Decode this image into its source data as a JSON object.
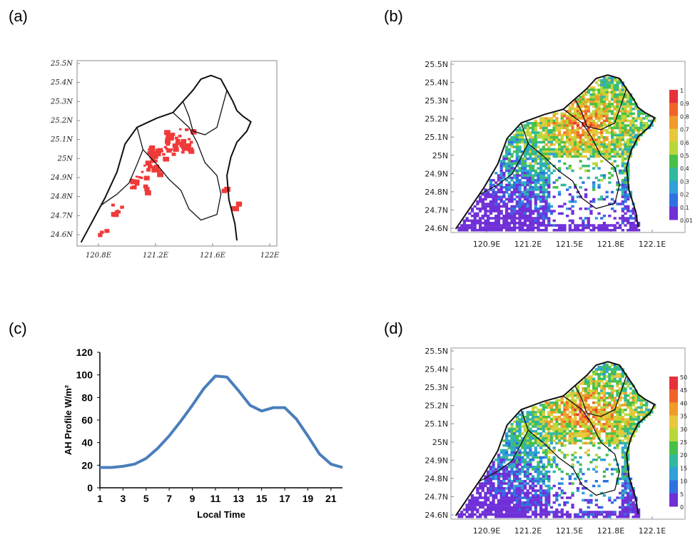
{
  "panels": {
    "a": {
      "label": "(a)"
    },
    "b": {
      "label": "(b)"
    },
    "c": {
      "label": "(c)"
    },
    "d": {
      "label": "(d)"
    }
  },
  "colors": {
    "urban_red": "#f03a3a",
    "outline": "#111111",
    "line_blue": "#4a7ebb"
  },
  "chart_data": [
    {
      "panel": "a",
      "type": "map",
      "title": "",
      "lat_ticks": [
        "25.5N",
        "25.4N",
        "25.3N",
        "25.2N",
        "25.1N",
        "25N",
        "24.9N",
        "24.8N",
        "24.7N",
        "24.6N"
      ],
      "lon_ticks": [
        "120.8E",
        "121.2E",
        "121.6E",
        "122E"
      ]
    },
    {
      "panel": "b",
      "type": "heatmap",
      "title": "",
      "lat_ticks": [
        "25.5N",
        "25.4N",
        "25.3N",
        "25.2N",
        "25.1N",
        "25N",
        "24.9N",
        "24.8N",
        "24.7N",
        "24.6N"
      ],
      "lon_ticks": [
        "120.9E",
        "121.2E",
        "121.5E",
        "121.8E",
        "122.1E"
      ],
      "colorbar_ticks": [
        "1",
        "0.9",
        "0.8",
        "0.7",
        "0.6",
        "0.5",
        "0.4",
        "0.3",
        "0.2",
        "0.1",
        "0.01"
      ],
      "colorbar_colors": [
        "#e8303a",
        "#f0642a",
        "#f09a2a",
        "#e8c83a",
        "#b8d83a",
        "#48c048",
        "#30b8a0",
        "#30a0d8",
        "#3070e0",
        "#7030d8"
      ]
    },
    {
      "panel": "c",
      "type": "line",
      "title": "",
      "xlabel": "Local Time",
      "ylabel": "AH Profile  W/m²",
      "x": [
        1,
        2,
        3,
        4,
        5,
        6,
        7,
        8,
        9,
        10,
        11,
        12,
        13,
        14,
        15,
        16,
        17,
        18,
        19,
        20,
        21,
        22
      ],
      "values": [
        18,
        18,
        19,
        21,
        26,
        35,
        46,
        59,
        73,
        88,
        99,
        98,
        86,
        73,
        68,
        71,
        71,
        61,
        46,
        30,
        21,
        18
      ],
      "xticks": [
        "1",
        "3",
        "5",
        "7",
        "9",
        "11",
        "13",
        "15",
        "17",
        "19",
        "21"
      ],
      "yticks": [
        "0",
        "20",
        "40",
        "60",
        "80",
        "100",
        "120"
      ],
      "ylim": [
        0,
        120
      ],
      "xlim": [
        1,
        22
      ]
    },
    {
      "panel": "d",
      "type": "heatmap",
      "title": "",
      "lat_ticks": [
        "25.5N",
        "25.4N",
        "25.3N",
        "25.2N",
        "25.1N",
        "25N",
        "24.9N",
        "24.8N",
        "24.7N",
        "24.6N"
      ],
      "lon_ticks": [
        "120.9E",
        "121.2E",
        "121.5E",
        "121.8E",
        "122.1E"
      ],
      "colorbar_ticks": [
        "50",
        "45",
        "40",
        "35",
        "30",
        "25",
        "20",
        "15",
        "10",
        "5",
        "0"
      ],
      "colorbar_colors": [
        "#e8303a",
        "#f0642a",
        "#f09a2a",
        "#e8c83a",
        "#b8d83a",
        "#48c048",
        "#30b8a0",
        "#30a0d8",
        "#3070e0",
        "#7030d8"
      ]
    }
  ]
}
